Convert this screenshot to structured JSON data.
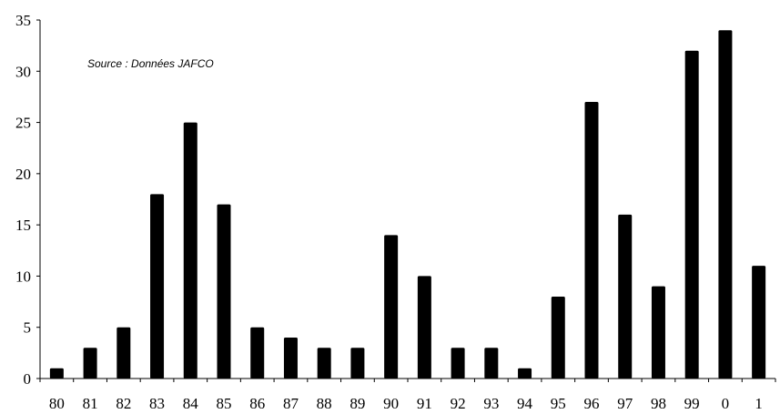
{
  "chart_data": {
    "type": "bar",
    "annotation": "Source : Données JAFCO",
    "categories": [
      "80",
      "81",
      "82",
      "83",
      "84",
      "85",
      "86",
      "87",
      "88",
      "89",
      "90",
      "91",
      "92",
      "93",
      "94",
      "95",
      "96",
      "97",
      "98",
      "99",
      "0",
      "1"
    ],
    "values": [
      1,
      3,
      5,
      18,
      25,
      17,
      5,
      4,
      3,
      3,
      14,
      10,
      3,
      3,
      1,
      8,
      27,
      16,
      9,
      32,
      34,
      11
    ],
    "ylim": [
      0,
      35
    ],
    "yticks": [
      0,
      5,
      10,
      15,
      20,
      25,
      30,
      35
    ],
    "grid": false,
    "bar_color": "#000000"
  }
}
